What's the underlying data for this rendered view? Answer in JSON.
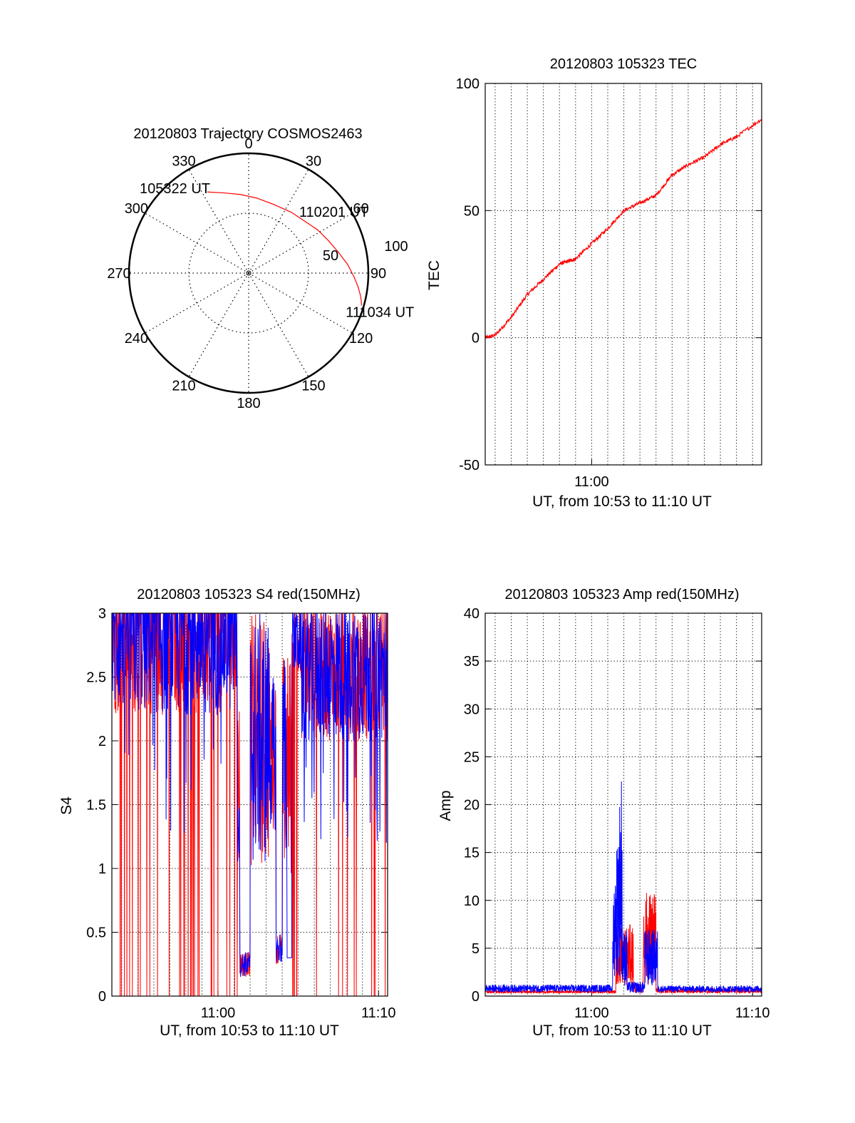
{
  "chart_data": [
    {
      "id": "polar",
      "type": "polar",
      "title": "20120803 Trajectory COSMOS2463",
      "azimuth_ticks": [
        "0",
        "30",
        "60",
        "90",
        "120",
        "150",
        "180",
        "210",
        "240",
        "270",
        "300",
        "330"
      ],
      "radial_ticks": [
        "50",
        "100"
      ],
      "rmax": 100,
      "track": {
        "color": "#ff0000",
        "points": [
          {
            "az": 333,
            "r": 76
          },
          {
            "az": 343,
            "r": 70
          },
          {
            "az": 354,
            "r": 66
          },
          {
            "az": 6,
            "r": 63
          },
          {
            "az": 20,
            "r": 61
          },
          {
            "az": 35,
            "r": 62
          },
          {
            "az": 48,
            "r": 64
          },
          {
            "az": 58,
            "r": 68
          },
          {
            "az": 68,
            "r": 72
          },
          {
            "az": 77,
            "r": 77
          },
          {
            "az": 85,
            "r": 83
          },
          {
            "az": 92,
            "r": 88
          },
          {
            "az": 97,
            "r": 92
          },
          {
            "az": 101,
            "r": 95
          },
          {
            "az": 104,
            "r": 97
          },
          {
            "az": 106,
            "r": 98
          }
        ]
      },
      "annotations": [
        {
          "text": "105322 UT",
          "az": 333,
          "r": 76
        },
        {
          "text": "110201 UT",
          "az": 45,
          "r": 63
        },
        {
          "text": "111034 UT",
          "az": 106,
          "r": 98
        }
      ]
    },
    {
      "id": "tec",
      "type": "line",
      "title": "20120803 105323 TEC",
      "ylabel": "TEC",
      "xlabel": "UT, from 10:53 to 11:10 UT",
      "x_range": [
        "10:53:23",
        "11:10:34"
      ],
      "ylim": [
        -50,
        100
      ],
      "yticks": [
        "-50",
        "0",
        "50",
        "100"
      ],
      "xticks": [
        {
          "t": "11:00:00",
          "label": "11:00"
        }
      ],
      "grid": true,
      "series": [
        {
          "color": "#ff0000",
          "x": [
            "10:53:23",
            "10:54:00",
            "10:55:00",
            "10:56:00",
            "10:57:00",
            "10:58:00",
            "10:58:30",
            "10:59:00",
            "11:00:00",
            "11:01:00",
            "11:02:00",
            "11:03:00",
            "11:04:00",
            "11:05:00",
            "11:06:00",
            "11:07:00",
            "11:08:00",
            "11:09:00",
            "11:10:34"
          ],
          "y": [
            0,
            1,
            8,
            17,
            23,
            29,
            30,
            31,
            37,
            43,
            50,
            53,
            56,
            64,
            68,
            71,
            76,
            79,
            86
          ]
        }
      ]
    },
    {
      "id": "s4",
      "type": "line",
      "title": "20120803 105323 S4 red(150MHz)",
      "ylabel": "S4",
      "xlabel": "UT, from 10:53 to 11:10 UT",
      "x_range": [
        "10:53:23",
        "11:10:34"
      ],
      "ylim": [
        0,
        3
      ],
      "yticks": [
        "0",
        "0.5",
        "1",
        "1.5",
        "2",
        "2.5",
        "3"
      ],
      "xticks": [
        {
          "t": "11:00:00",
          "label": "11:00"
        },
        {
          "t": "11:10:00",
          "label": "11:10"
        }
      ],
      "grid": true,
      "series": [
        {
          "color": "#ff0000",
          "style": "noisy",
          "shape": "s4_red"
        },
        {
          "color": "#0000ff",
          "style": "noisy",
          "shape": "s4_blue"
        }
      ]
    },
    {
      "id": "amp",
      "type": "line",
      "title": "20120803 105323 Amp red(150MHz)",
      "ylabel": "Amp",
      "xlabel": "UT, from 10:53 to 11:10 UT",
      "x_range": [
        "10:53:23",
        "11:10:34"
      ],
      "ylim": [
        0,
        40
      ],
      "yticks": [
        "0",
        "5",
        "10",
        "15",
        "20",
        "25",
        "30",
        "35",
        "40"
      ],
      "xticks": [
        {
          "t": "11:00:00",
          "label": "11:00"
        },
        {
          "t": "11:10:00",
          "label": "11:10"
        }
      ],
      "grid": true,
      "series": [
        {
          "color": "#ff0000",
          "style": "noisy",
          "shape": "amp_red"
        },
        {
          "color": "#0000ff",
          "style": "noisy",
          "shape": "amp_blue"
        }
      ]
    }
  ]
}
